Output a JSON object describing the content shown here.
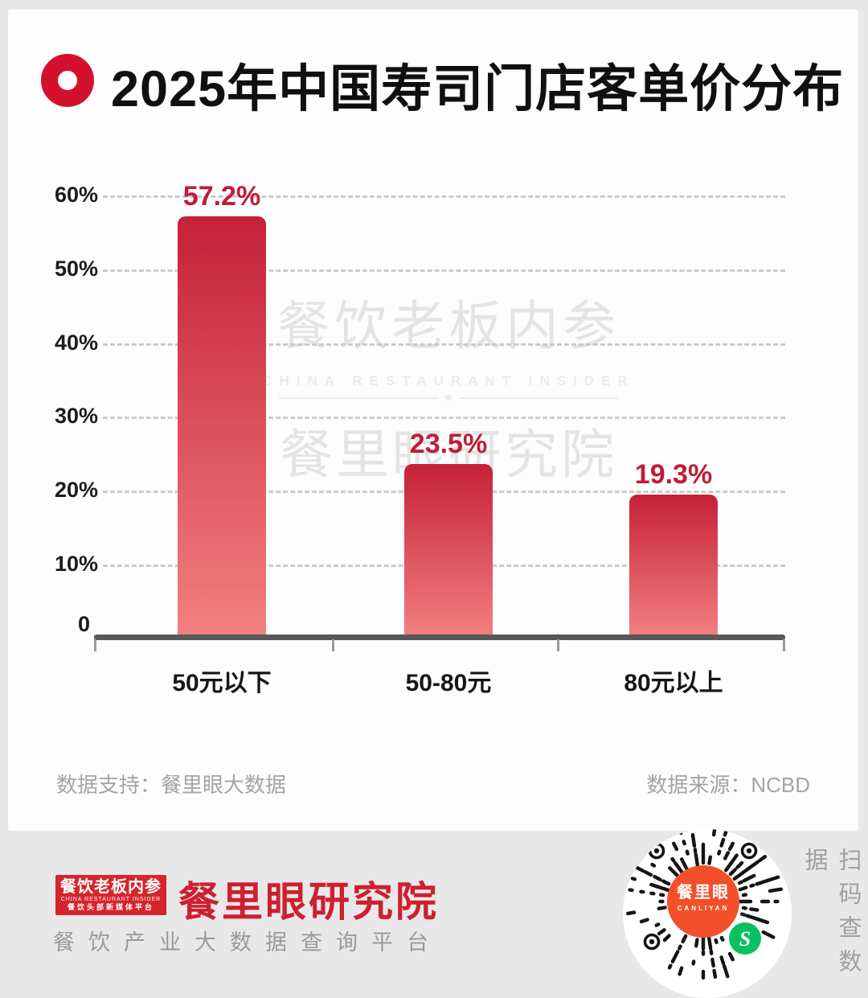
{
  "header": {
    "title": "2025年中国寿司门店客单价分布"
  },
  "chart_data": {
    "type": "bar",
    "title": "2025年中国寿司门店客单价分布",
    "categories": [
      "50元以下",
      "50-80元",
      "80元以上"
    ],
    "values": [
      57.2,
      23.5,
      19.3
    ],
    "data_labels": [
      "57.2%",
      "23.5%",
      "19.3%"
    ],
    "y_ticks": [
      "60%",
      "50%",
      "40%",
      "30%",
      "20%",
      "10%",
      "0"
    ],
    "ylim": [
      0,
      60
    ],
    "xlabel": "",
    "ylabel": "",
    "grid": "horizontal-dashed",
    "legend": "none",
    "bar_color_top": "#c52137",
    "bar_color_bottom": "#f28080",
    "data_label_color": "#bf1c3a"
  },
  "watermark": {
    "line1": "餐饮老板内参",
    "line2": "CHINA RESTAURANT INSIDER",
    "star": "★",
    "line3": "餐里眼研究院"
  },
  "sources": {
    "support": "数据支持：餐里眼大数据",
    "origin": "数据来源：NCBD"
  },
  "footer": {
    "logo": {
      "line1": "餐饮老板内参",
      "line2": "CHINA RESTAURANT INSIDER",
      "line3": "餐饮头部新媒体平台"
    },
    "brand": "餐里眼研究院",
    "tagline": "餐饮产业大数据查询平台",
    "qr": {
      "center_name": "餐里眼",
      "center_sub": "CANLIYAN",
      "side_text": "扫码查数据"
    }
  },
  "colors": {
    "accent_red": "#d5102d",
    "label_red": "#bf1c3a",
    "logo_red": "#d7242c",
    "brand_red": "#ce1f2e",
    "qr_orange": "#f2502a",
    "wechat_green": "#07c160",
    "axis_gray": "#58585a",
    "page_bg": "#e8e8e8"
  }
}
